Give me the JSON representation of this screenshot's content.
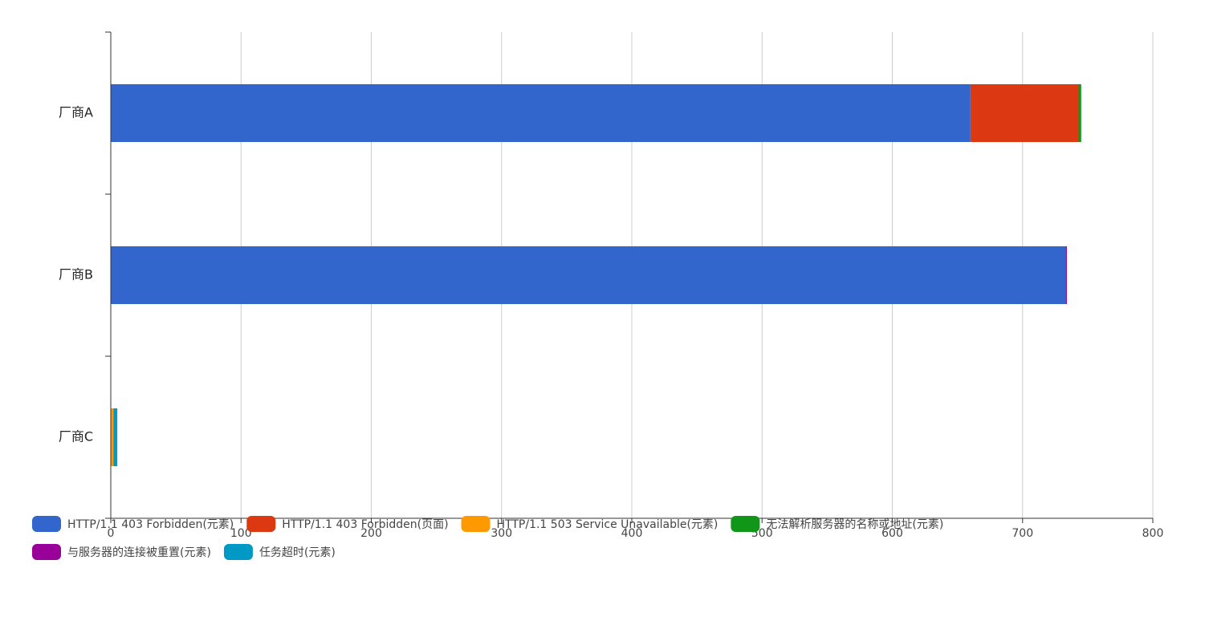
{
  "chart_data": {
    "type": "bar",
    "orientation": "horizontal",
    "stacked": true,
    "categories": [
      "厂商A",
      "厂商B",
      "厂商C"
    ],
    "series": [
      {
        "name": "HTTP/1.1 403 Forbidden(元素)",
        "color": "#3366cc",
        "values": [
          660,
          733,
          0
        ]
      },
      {
        "name": "HTTP/1.1 403 Forbidden(页面)",
        "color": "#dc3912",
        "values": [
          83,
          0,
          0
        ]
      },
      {
        "name": "HTTP/1.1 503 Service Unavailable(元素)",
        "color": "#ff9900",
        "values": [
          0,
          0,
          2
        ]
      },
      {
        "name": "无法解析服务器的名称或地址(元素)",
        "color": "#109618",
        "values": [
          2,
          0,
          0
        ]
      },
      {
        "name": "与服务器的连接被重置(元素)",
        "color": "#990099",
        "values": [
          0,
          1,
          0
        ]
      },
      {
        "name": "任务超时(元素)",
        "color": "#0099c6",
        "values": [
          0,
          0,
          3
        ]
      }
    ],
    "xlim": [
      0,
      800
    ],
    "xticks": [
      0,
      100,
      200,
      300,
      400,
      500,
      600,
      700,
      800
    ],
    "grid": true,
    "legend": "bottom"
  }
}
